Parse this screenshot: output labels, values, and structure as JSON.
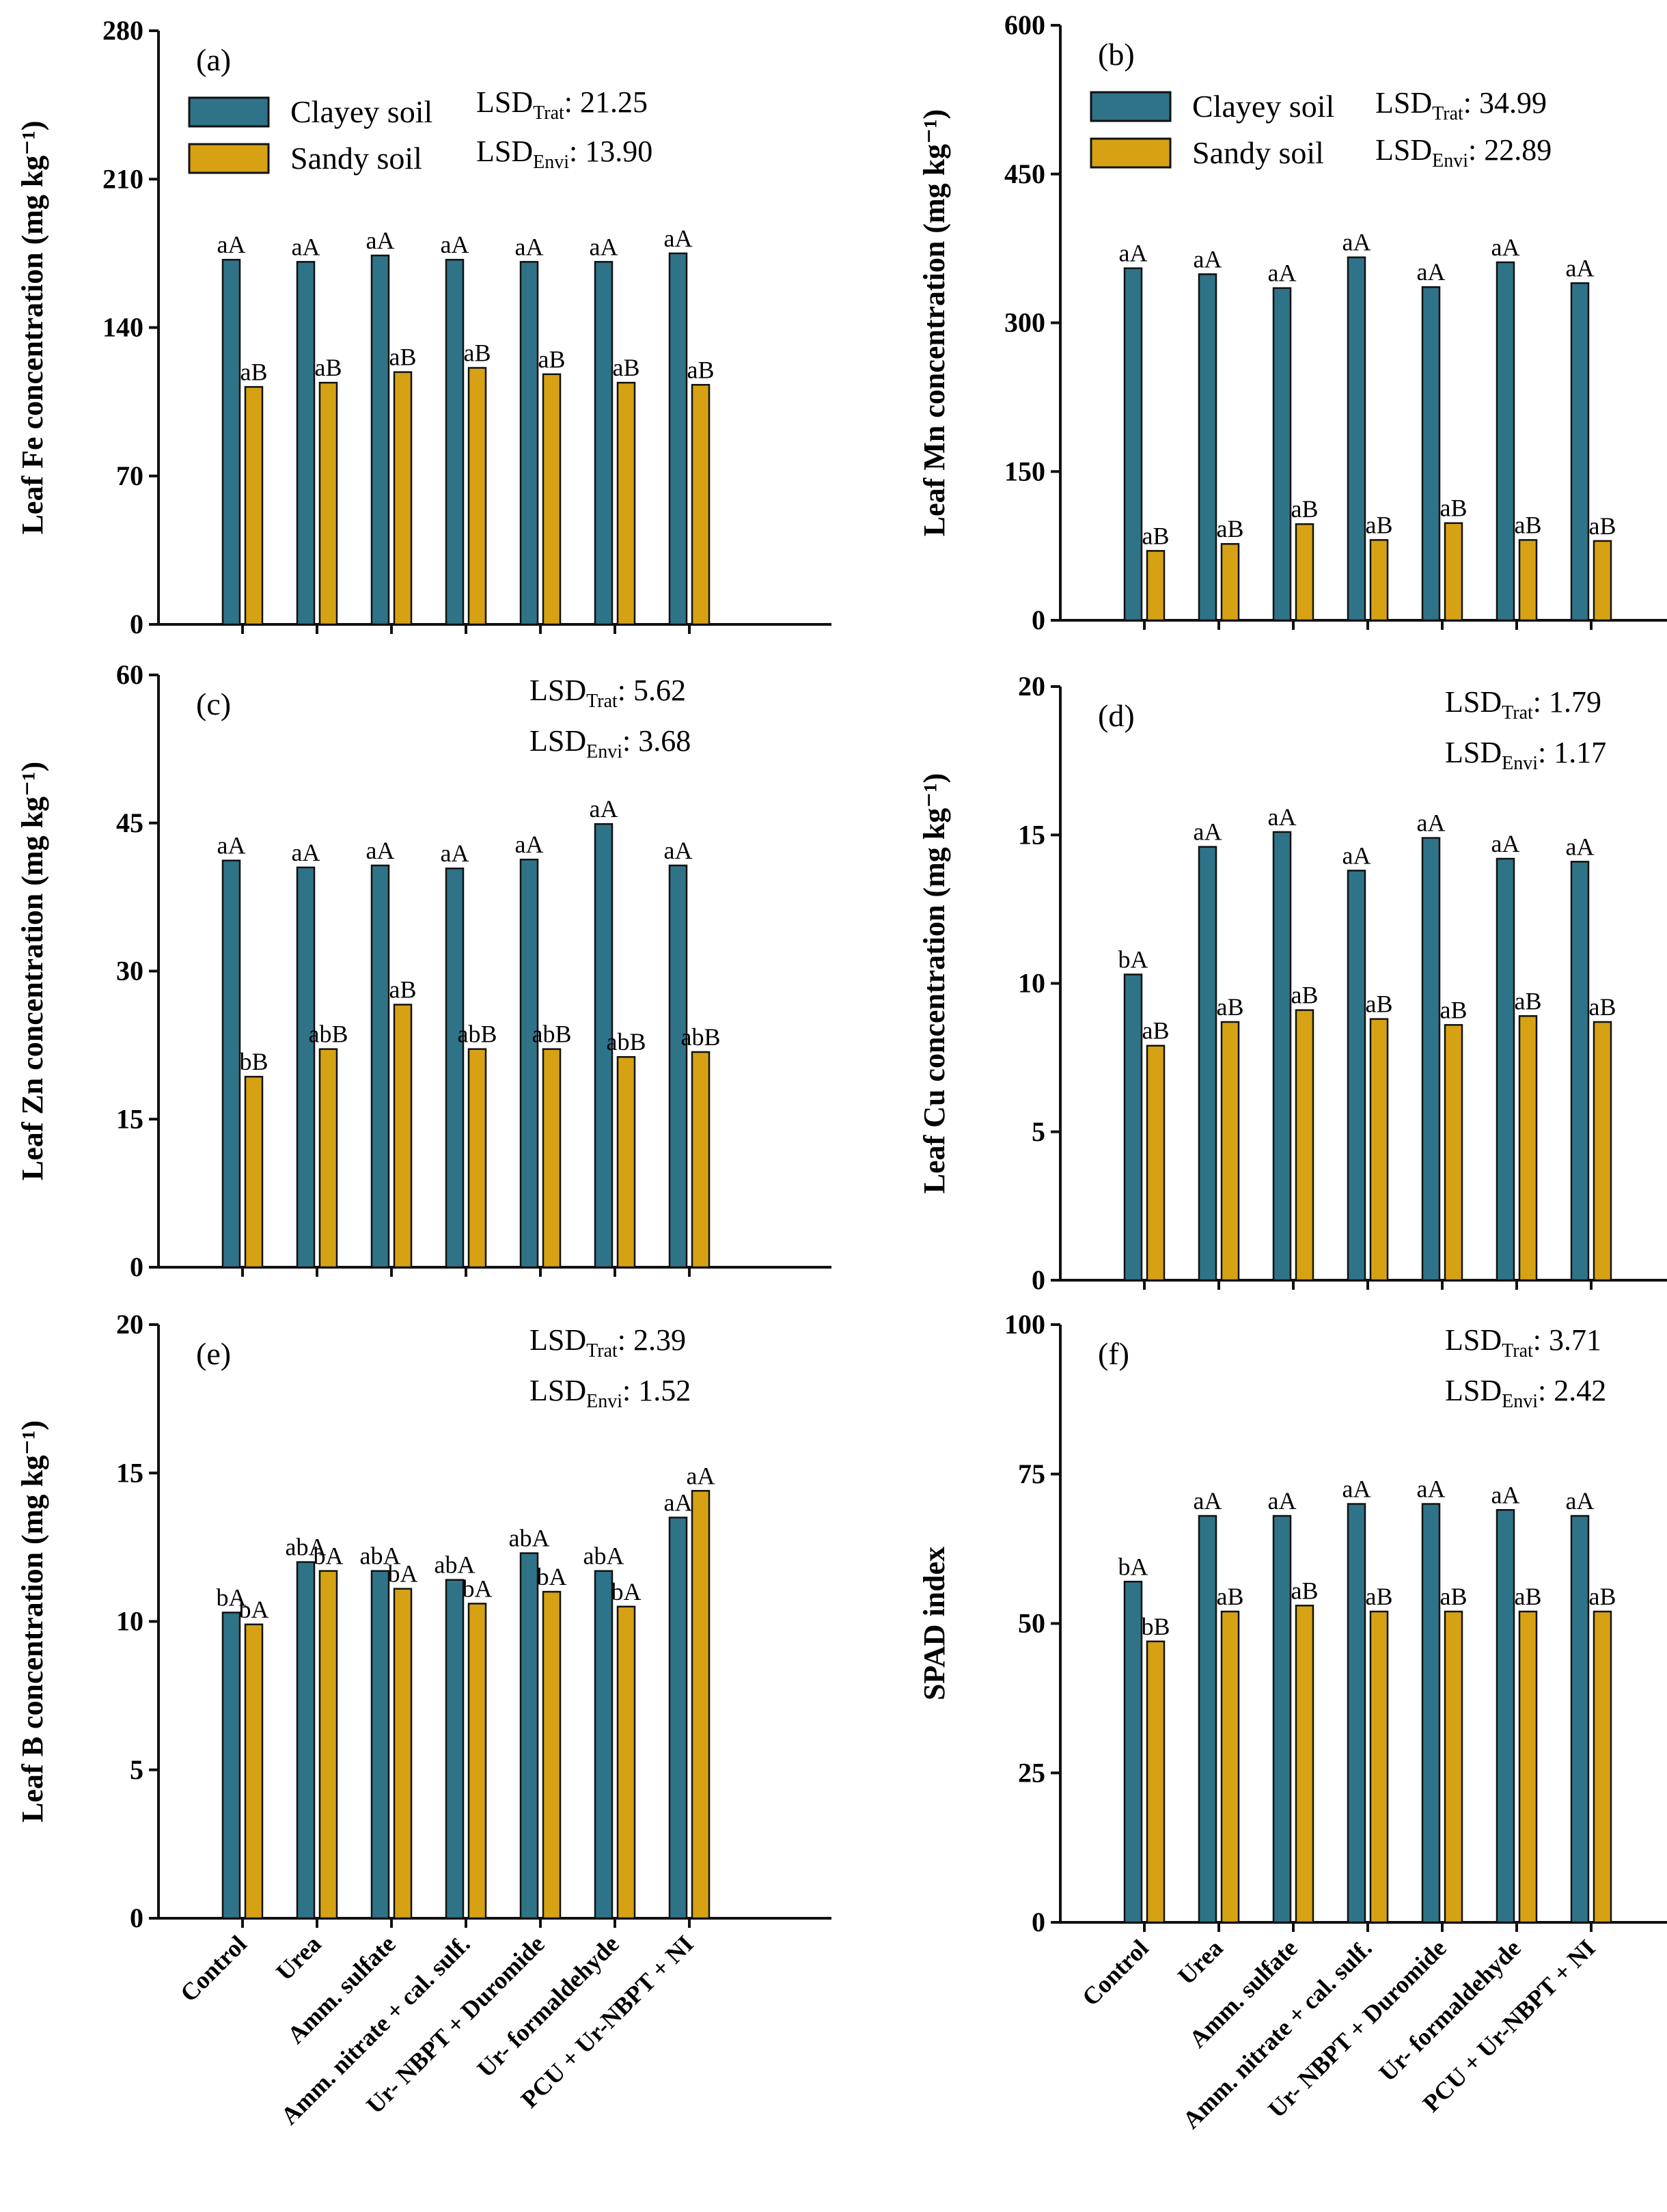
{
  "colors": {
    "clayey": "#2f7389",
    "sandy": "#d6a214",
    "edge": "#111111"
  },
  "legend": [
    {
      "label": "Clayey soil"
    },
    {
      "label": "Sandy soil"
    }
  ],
  "categories": [
    "Control",
    "Urea",
    "Amm. sulfate",
    "Amm. nitrate + cal. sulf.",
    "Ur- NBPT + Duromide",
    "Ur- formaldehyde",
    "PCU + Ur-NBPT + NI"
  ],
  "chart_data": [
    {
      "type": "bar",
      "panel": "(a)",
      "ylabel": "Leaf Fe concentration (mg kg⁻¹)",
      "ylim": [
        0,
        280
      ],
      "yticks": [
        "0",
        "70",
        "140",
        "210",
        "280"
      ],
      "lsd": {
        "trat_label": "LSD",
        "trat_sub": "Trat",
        "trat_value": ": 21.25",
        "envi_label": "LSD",
        "envi_sub": "Envi",
        "envi_value": ": 13.90"
      },
      "series": [
        {
          "name": "Clayey soil",
          "values": [
            172,
            171,
            174,
            172,
            171,
            171,
            175
          ],
          "letters": [
            "aA",
            "aA",
            "aA",
            "aA",
            "aA",
            "aA",
            "aA"
          ]
        },
        {
          "name": "Sandy soil",
          "values": [
            112,
            114,
            119,
            121,
            118,
            114,
            113
          ],
          "letters": [
            "aB",
            "aB",
            "aB",
            "aB",
            "aB",
            "aB",
            "aB"
          ]
        }
      ]
    },
    {
      "type": "bar",
      "panel": "(b)",
      "ylabel": "Leaf Mn concentration (mg kg⁻¹)",
      "ylim": [
        0,
        600
      ],
      "yticks": [
        "0",
        "150",
        "300",
        "450",
        "600"
      ],
      "lsd": {
        "trat_label": "LSD",
        "trat_sub": "Trat",
        "trat_value": ": 34.99",
        "envi_label": "LSD",
        "envi_sub": "Envi",
        "envi_value": ": 22.89"
      },
      "series": [
        {
          "name": "Clayey soil",
          "values": [
            355,
            349,
            335,
            366,
            336,
            361,
            340
          ],
          "letters": [
            "aA",
            "aA",
            "aA",
            "aA",
            "aA",
            "aA",
            "aA"
          ]
        },
        {
          "name": "Sandy soil",
          "values": [
            70,
            77,
            97,
            81,
            98,
            81,
            80
          ],
          "letters": [
            "aB",
            "aB",
            "aB",
            "aB",
            "aB",
            "aB",
            "aB"
          ]
        }
      ]
    },
    {
      "type": "bar",
      "panel": "(c)",
      "ylabel": "Leaf Zn concentration (mg kg⁻¹)",
      "ylim": [
        0,
        60
      ],
      "yticks": [
        "0",
        "15",
        "30",
        "45",
        "60"
      ],
      "lsd": {
        "trat_label": "LSD",
        "trat_sub": "Trat",
        "trat_value": ": 5.62",
        "envi_label": "LSD",
        "envi_sub": "Envi",
        "envi_value": ": 3.68"
      },
      "series": [
        {
          "name": "Clayey soil",
          "values": [
            41.2,
            40.5,
            40.7,
            40.4,
            41.3,
            44.9,
            40.7
          ],
          "letters": [
            "aA",
            "aA",
            "aA",
            "aA",
            "aA",
            "aA",
            "aA"
          ]
        },
        {
          "name": "Sandy soil",
          "values": [
            19.3,
            22.1,
            26.6,
            22.1,
            22.1,
            21.3,
            21.8
          ],
          "letters": [
            "bB",
            "abB",
            "aB",
            "abB",
            "abB",
            "abB",
            "abB"
          ]
        }
      ]
    },
    {
      "type": "bar",
      "panel": "(d)",
      "ylabel": "Leaf Cu concentration (mg kg⁻¹)",
      "ylim": [
        0,
        20
      ],
      "yticks": [
        "0",
        "5",
        "10",
        "15",
        "20"
      ],
      "lsd": {
        "trat_label": "LSD",
        "trat_sub": "Trat",
        "trat_value": ": 1.79",
        "envi_label": "LSD",
        "envi_sub": "Envi",
        "envi_value": ": 1.17"
      },
      "series": [
        {
          "name": "Clayey soil",
          "values": [
            10.3,
            14.6,
            15.1,
            13.8,
            14.9,
            14.2,
            14.1
          ],
          "letters": [
            "bA",
            "aA",
            "aA",
            "aA",
            "aA",
            "aA",
            "aA"
          ]
        },
        {
          "name": "Sandy soil",
          "values": [
            7.9,
            8.7,
            9.1,
            8.8,
            8.6,
            8.9,
            8.7
          ],
          "letters": [
            "aB",
            "aB",
            "aB",
            "aB",
            "aB",
            "aB",
            "aB"
          ]
        }
      ]
    },
    {
      "type": "bar",
      "panel": "(e)",
      "ylabel": "Leaf B concentration (mg kg⁻¹)",
      "ylim": [
        0,
        20
      ],
      "yticks": [
        "0",
        "5",
        "10",
        "15",
        "20"
      ],
      "lsd": {
        "trat_label": "LSD",
        "trat_sub": "Trat",
        "trat_value": ": 2.39",
        "envi_label": "LSD",
        "envi_sub": "Envi",
        "envi_value": ": 1.52"
      },
      "series": [
        {
          "name": "Clayey soil",
          "values": [
            10.3,
            12.0,
            11.7,
            11.4,
            12.3,
            11.7,
            13.5
          ],
          "letters": [
            "bA",
            "abA",
            "abA",
            "abA",
            "abA",
            "abA",
            "aA"
          ]
        },
        {
          "name": "Sandy soil",
          "values": [
            9.9,
            11.7,
            11.1,
            10.6,
            11.0,
            10.5,
            14.4
          ],
          "letters": [
            "bA",
            "bA",
            "bA",
            "bA",
            "bA",
            "bA",
            "aA"
          ]
        }
      ]
    },
    {
      "type": "bar",
      "panel": "(f)",
      "ylabel": "SPAD index",
      "ylim": [
        0,
        100
      ],
      "yticks": [
        "0",
        "25",
        "50",
        "75",
        "100"
      ],
      "lsd": {
        "trat_label": "LSD",
        "trat_sub": "Trat",
        "trat_value": ": 3.71",
        "envi_label": "LSD",
        "envi_sub": "Envi",
        "envi_value": ": 2.42"
      },
      "series": [
        {
          "name": "Clayey soil",
          "values": [
            57,
            68,
            68,
            70,
            70,
            69,
            68
          ],
          "letters": [
            "bA",
            "aA",
            "aA",
            "aA",
            "aA",
            "aA",
            "aA"
          ]
        },
        {
          "name": "Sandy soil",
          "values": [
            47,
            52,
            53,
            52,
            52,
            52,
            52
          ],
          "letters": [
            "bB",
            "aB",
            "aB",
            "aB",
            "aB",
            "aB",
            "aB"
          ]
        }
      ]
    }
  ]
}
